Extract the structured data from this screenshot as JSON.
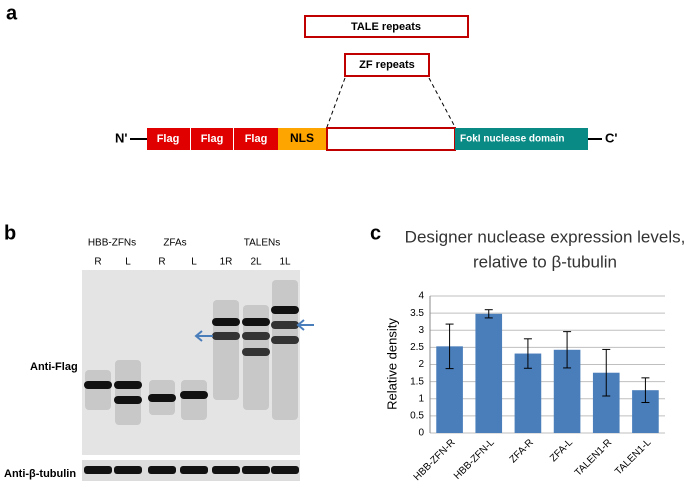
{
  "panel_labels": [
    "a",
    "b",
    "c"
  ],
  "diagram": {
    "tale_repeats": "TALE repeats",
    "zf_repeats": "ZF repeats",
    "n_term": "N'",
    "c_term": "C'",
    "domains": [
      "Flag",
      "Flag",
      "Flag",
      "NLS",
      "FokI nuclease domain"
    ]
  },
  "blot": {
    "groups": [
      "HBB-ZFNs",
      "ZFAs",
      "TALENs"
    ],
    "lanes": [
      "R",
      "L",
      "R",
      "L",
      "1R",
      "2L",
      "1L"
    ],
    "anti_flag": "Anti-Flag",
    "anti_tubulin": "Anti-β-tubulin"
  },
  "chart_data": {
    "type": "bar",
    "title": [
      "Designer nuclease expression levels,",
      "relative to β-tubulin"
    ],
    "y_label": "Relative density",
    "categories": [
      "HBB-ZFN-R",
      "HBB-ZFN-L",
      "ZFA-R",
      "ZFA-L",
      "TALEN1-R",
      "TALEN1-L"
    ],
    "values": [
      2.53,
      3.48,
      2.32,
      2.43,
      1.76,
      1.25
    ],
    "errors": [
      0.65,
      0.12,
      0.43,
      0.53,
      0.68,
      0.36
    ],
    "color": "#4a7ebb",
    "ylim": [
      0,
      4
    ],
    "yticks": [
      0,
      0.5,
      1,
      1.5,
      2,
      2.5,
      3,
      3.5,
      4
    ],
    "grid": true
  }
}
